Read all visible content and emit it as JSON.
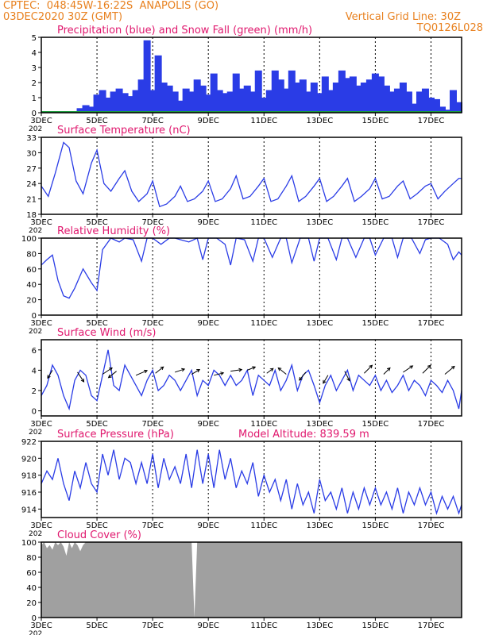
{
  "header": {
    "line1_left": "CPTEC:  048:45W-16:22S  ANAPOLIS (GO)",
    "line2_left": "03DEC2020 30Z (GMT)",
    "line2_right": "Vertical Grid Line: 30Z",
    "line3_right": "TQ0126L028"
  },
  "colors": {
    "header_text": "#e8801e",
    "panel_title": "#e0186e",
    "series_line": "#2a3ce6",
    "precip_bar": "#2a3ce6",
    "snow": "#1a9a3a",
    "cloud_fill": "#a0a0a0",
    "wind_arrow": "#000000"
  },
  "x_axis": {
    "ticks": [
      "3DEC",
      "5DEC",
      "7DEC",
      "9DEC",
      "11DEC",
      "13DEC",
      "15DEC",
      "17DEC"
    ],
    "tick_days": [
      3,
      5,
      7,
      9,
      11,
      13,
      15,
      17
    ],
    "range_days": [
      3,
      18.1
    ],
    "year_stub": "202"
  },
  "panels": [
    {
      "id": "precip",
      "title": "Precipitation (blue) and Snow Fall (green) (mm/h)",
      "extra": "",
      "ylim": [
        0,
        5
      ],
      "yticks": [
        "0",
        "1",
        "2",
        "3",
        "4",
        "5"
      ],
      "ytick_values": [
        0,
        1,
        2,
        3,
        4,
        5
      ]
    },
    {
      "id": "temp",
      "title": "Surface Temperature (nC)",
      "extra": "",
      "ylim": [
        18,
        33
      ],
      "yticks": [
        "18",
        "21",
        "24",
        "27",
        "30",
        "33"
      ],
      "ytick_values": [
        18,
        21,
        24,
        27,
        30,
        33
      ]
    },
    {
      "id": "rh",
      "title": "Relative Humidity (%)",
      "extra": "",
      "ylim": [
        0,
        100
      ],
      "yticks": [
        "0",
        "20",
        "40",
        "60",
        "80",
        "100"
      ],
      "ytick_values": [
        0,
        20,
        40,
        60,
        80,
        100
      ]
    },
    {
      "id": "wind",
      "title": "Surface Wind (m/s)",
      "extra": "",
      "ylim": [
        -0.5,
        7
      ],
      "yticks": [
        "0",
        "2",
        "4",
        "6"
      ],
      "ytick_values": [
        0,
        2,
        4,
        6
      ]
    },
    {
      "id": "pres",
      "title": "Surface Pressure (hPa)",
      "extra": "Model Altitude: 839.59 m",
      "ylim": [
        913,
        922
      ],
      "yticks": [
        "914",
        "916",
        "918",
        "920",
        "922"
      ],
      "ytick_values": [
        914,
        916,
        918,
        920,
        922
      ]
    },
    {
      "id": "cloud",
      "title": "Cloud Cover (%)",
      "extra": "",
      "ylim": [
        0,
        100
      ],
      "yticks": [
        "0",
        "20",
        "40",
        "60",
        "80",
        "100"
      ],
      "ytick_values": [
        0,
        20,
        40,
        60,
        80,
        100
      ]
    }
  ],
  "chart_data": [
    {
      "type": "bar",
      "title": "Precipitation (blue) and Snow Fall (green) (mm/h)",
      "x_unit": "day of December 2020",
      "ylim": [
        0,
        5
      ],
      "series": [
        {
          "name": "Precipitation",
          "x": [
            4.2,
            4.4,
            4.6,
            4.8,
            5.0,
            5.2,
            5.4,
            5.6,
            5.8,
            6.0,
            6.2,
            6.4,
            6.6,
            6.8,
            7.0,
            7.2,
            7.4,
            7.6,
            7.8,
            8.0,
            8.2,
            8.4,
            8.6,
            8.8,
            9.0,
            9.2,
            9.4,
            9.6,
            9.8,
            10.0,
            10.2,
            10.4,
            10.6,
            10.8,
            11.0,
            11.2,
            11.4,
            11.6,
            11.8,
            12.0,
            12.2,
            12.4,
            12.6,
            12.8,
            13.0,
            13.2,
            13.4,
            13.6,
            13.8,
            14.0,
            14.2,
            14.4,
            14.6,
            14.8,
            15.0,
            15.2,
            15.4,
            15.6,
            15.8,
            16.0,
            16.2,
            16.4,
            16.6,
            16.8,
            17.0,
            17.2,
            17.4,
            17.6,
            17.8,
            18.0
          ],
          "values": [
            0.1,
            0.3,
            0.5,
            0.4,
            1.2,
            1.5,
            1.0,
            1.4,
            1.6,
            1.3,
            1.1,
            1.5,
            2.2,
            4.8,
            1.5,
            3.8,
            2.0,
            1.8,
            1.4,
            0.8,
            1.6,
            1.4,
            2.2,
            1.8,
            1.2,
            2.6,
            1.5,
            1.3,
            1.4,
            2.6,
            1.6,
            1.8,
            1.4,
            2.8,
            1.0,
            1.5,
            2.8,
            2.2,
            1.6,
            2.8,
            2.0,
            2.2,
            1.4,
            2.0,
            1.3,
            2.4,
            1.5,
            2.0,
            2.8,
            2.3,
            2.4,
            1.8,
            2.0,
            2.2,
            2.6,
            2.4,
            1.8,
            1.4,
            1.6,
            2.0,
            1.4,
            0.6,
            1.4,
            1.6,
            1.0,
            0.9,
            0.4,
            0.2,
            1.5,
            0.7
          ]
        }
      ]
    },
    {
      "type": "line",
      "title": "Surface Temperature (nC)",
      "ylim": [
        18,
        33
      ],
      "series": [
        {
          "name": "Temperature",
          "x": [
            3.0,
            3.25,
            3.5,
            3.8,
            4.0,
            4.25,
            4.5,
            4.8,
            5.0,
            5.25,
            5.5,
            5.8,
            6.0,
            6.25,
            6.5,
            6.8,
            7.0,
            7.25,
            7.5,
            7.8,
            8.0,
            8.25,
            8.5,
            8.8,
            9.0,
            9.25,
            9.5,
            9.8,
            10.0,
            10.25,
            10.5,
            10.8,
            11.0,
            11.25,
            11.5,
            11.8,
            12.0,
            12.25,
            12.5,
            12.8,
            13.0,
            13.25,
            13.5,
            13.8,
            14.0,
            14.25,
            14.5,
            14.8,
            15.0,
            15.25,
            15.5,
            15.8,
            16.0,
            16.25,
            16.5,
            16.8,
            17.0,
            17.25,
            17.5,
            17.8,
            18.0,
            18.1
          ],
          "values": [
            23.5,
            21.5,
            26.0,
            32.0,
            31.0,
            24.5,
            22.0,
            28.0,
            30.5,
            24.0,
            22.5,
            25.0,
            26.5,
            22.5,
            20.5,
            22.0,
            24.5,
            19.5,
            20.0,
            21.5,
            23.5,
            20.5,
            21.0,
            22.5,
            24.5,
            20.5,
            21.0,
            23.0,
            25.5,
            21.0,
            21.5,
            23.5,
            25.0,
            20.5,
            21.0,
            23.5,
            25.5,
            20.5,
            21.5,
            23.5,
            25.0,
            20.5,
            21.5,
            23.5,
            25.0,
            20.5,
            21.5,
            23.0,
            25.0,
            21.0,
            21.5,
            23.5,
            24.5,
            21.0,
            22.0,
            23.5,
            24.0,
            21.0,
            22.5,
            24.0,
            25.0,
            25.0
          ]
        }
      ]
    },
    {
      "type": "line",
      "title": "Relative Humidity (%)",
      "ylim": [
        0,
        100
      ],
      "series": [
        {
          "name": "Relative Humidity",
          "x": [
            3.0,
            3.2,
            3.4,
            3.6,
            3.8,
            4.0,
            4.2,
            4.5,
            4.8,
            5.0,
            5.2,
            5.5,
            5.8,
            6.0,
            6.3,
            6.6,
            6.8,
            7.0,
            7.3,
            7.6,
            7.8,
            8.0,
            8.3,
            8.6,
            8.8,
            9.0,
            9.3,
            9.6,
            9.8,
            10.0,
            10.3,
            10.6,
            10.8,
            11.0,
            11.3,
            11.6,
            11.8,
            12.0,
            12.3,
            12.6,
            12.8,
            13.0,
            13.3,
            13.6,
            13.8,
            14.0,
            14.3,
            14.6,
            14.8,
            15.0,
            15.3,
            15.6,
            15.8,
            16.0,
            16.3,
            16.6,
            16.8,
            17.0,
            17.3,
            17.6,
            17.8,
            18.0,
            18.1
          ],
          "values": [
            65,
            72,
            78,
            45,
            25,
            22,
            35,
            60,
            42,
            32,
            85,
            100,
            95,
            100,
            98,
            70,
            100,
            100,
            92,
            100,
            100,
            98,
            95,
            100,
            72,
            100,
            100,
            92,
            65,
            100,
            98,
            70,
            100,
            100,
            75,
            100,
            100,
            68,
            100,
            100,
            70,
            100,
            100,
            72,
            100,
            100,
            75,
            100,
            100,
            78,
            100,
            100,
            75,
            100,
            100,
            80,
            98,
            100,
            100,
            92,
            72,
            82,
            78
          ]
        }
      ]
    },
    {
      "type": "line",
      "title": "Surface Wind (m/s)",
      "ylim": [
        -0.5,
        7
      ],
      "series": [
        {
          "name": "Wind speed",
          "x": [
            3.0,
            3.2,
            3.4,
            3.6,
            3.8,
            4.0,
            4.2,
            4.4,
            4.6,
            4.8,
            5.0,
            5.2,
            5.4,
            5.6,
            5.8,
            6.0,
            6.2,
            6.4,
            6.6,
            6.8,
            7.0,
            7.2,
            7.4,
            7.6,
            7.8,
            8.0,
            8.2,
            8.4,
            8.6,
            8.8,
            9.0,
            9.2,
            9.4,
            9.6,
            9.8,
            10.0,
            10.2,
            10.4,
            10.6,
            10.8,
            11.0,
            11.2,
            11.4,
            11.6,
            11.8,
            12.0,
            12.2,
            12.4,
            12.6,
            12.8,
            13.0,
            13.2,
            13.4,
            13.6,
            13.8,
            14.0,
            14.2,
            14.4,
            14.6,
            14.8,
            15.0,
            15.2,
            15.4,
            15.6,
            15.8,
            16.0,
            16.2,
            16.4,
            16.6,
            16.8,
            17.0,
            17.2,
            17.4,
            17.6,
            17.8,
            18.0,
            18.1
          ],
          "values": [
            1.5,
            2.5,
            4.5,
            3.5,
            1.5,
            0.2,
            3.0,
            4.0,
            3.5,
            1.5,
            1.0,
            3.5,
            6.0,
            2.5,
            2.0,
            4.5,
            3.5,
            2.5,
            1.5,
            3.0,
            4.0,
            2.0,
            2.5,
            3.5,
            3.0,
            2.0,
            3.0,
            4.0,
            1.5,
            3.0,
            2.5,
            4.0,
            3.5,
            2.5,
            3.5,
            2.5,
            3.0,
            4.0,
            1.5,
            3.5,
            3.0,
            2.5,
            4.0,
            2.0,
            3.0,
            4.5,
            2.0,
            3.5,
            4.0,
            2.5,
            0.8,
            2.5,
            3.5,
            2.0,
            3.0,
            4.0,
            2.0,
            3.5,
            3.0,
            2.5,
            3.5,
            2.0,
            3.0,
            1.8,
            2.5,
            3.5,
            2.0,
            3.0,
            2.5,
            1.5,
            3.0,
            2.5,
            1.8,
            3.0,
            2.0,
            0.2,
            2.0
          ]
        },
        {
          "name": "Wind arrows",
          "x": [
            3.4,
            4.3,
            5.2,
            5.7,
            6.4,
            7.1,
            7.8,
            8.4,
            9.2,
            9.8,
            10.4,
            11.1,
            11.8,
            12.5,
            13.3,
            13.9,
            14.6,
            15.3,
            16.0,
            16.7,
            17.5
          ],
          "values": [
            4.0,
            3.8,
            3.6,
            3.9,
            3.5,
            3.7,
            3.8,
            3.6,
            3.5,
            3.9,
            4.0,
            3.7,
            3.6,
            3.8,
            3.5,
            3.9,
            3.7,
            3.6,
            3.8,
            3.7,
            3.6
          ]
        }
      ]
    },
    {
      "type": "line",
      "title": "Surface Pressure (hPa)",
      "annotation": "Model Altitude: 839.59 m",
      "ylim": [
        913,
        922
      ],
      "series": [
        {
          "name": "Pressure",
          "x": [
            3.0,
            3.2,
            3.4,
            3.6,
            3.8,
            4.0,
            4.2,
            4.4,
            4.6,
            4.8,
            5.0,
            5.2,
            5.4,
            5.6,
            5.8,
            6.0,
            6.2,
            6.4,
            6.6,
            6.8,
            7.0,
            7.2,
            7.4,
            7.6,
            7.8,
            8.0,
            8.2,
            8.4,
            8.6,
            8.8,
            9.0,
            9.2,
            9.4,
            9.6,
            9.8,
            10.0,
            10.2,
            10.4,
            10.6,
            10.8,
            11.0,
            11.2,
            11.4,
            11.6,
            11.8,
            12.0,
            12.2,
            12.4,
            12.6,
            12.8,
            13.0,
            13.2,
            13.4,
            13.6,
            13.8,
            14.0,
            14.2,
            14.4,
            14.6,
            14.8,
            15.0,
            15.2,
            15.4,
            15.6,
            15.8,
            16.0,
            16.2,
            16.4,
            16.6,
            16.8,
            17.0,
            17.2,
            17.4,
            17.6,
            17.8,
            18.0,
            18.1
          ],
          "values": [
            917.0,
            918.5,
            917.5,
            920.0,
            917.0,
            915.0,
            918.5,
            916.5,
            919.5,
            917.0,
            916.0,
            920.5,
            918.0,
            921.0,
            917.5,
            920.0,
            919.5,
            917.0,
            919.5,
            917.0,
            920.5,
            916.5,
            920.0,
            917.5,
            919.0,
            917.0,
            920.5,
            916.5,
            921.0,
            917.0,
            920.5,
            916.5,
            921.0,
            917.5,
            920.0,
            916.5,
            918.5,
            917.0,
            919.5,
            915.5,
            918.0,
            916.0,
            917.5,
            915.0,
            917.5,
            914.0,
            917.0,
            914.5,
            916.0,
            913.5,
            917.5,
            915.0,
            916.0,
            914.0,
            916.5,
            913.5,
            916.0,
            914.0,
            916.5,
            914.5,
            916.5,
            914.5,
            916.0,
            914.0,
            916.5,
            913.5,
            916.0,
            914.5,
            916.5,
            914.5,
            916.0,
            913.5,
            915.5,
            914.0,
            915.5,
            913.5,
            914.5
          ]
        }
      ]
    },
    {
      "type": "area",
      "title": "Cloud Cover (%)",
      "ylim": [
        0,
        100
      ],
      "series": [
        {
          "name": "Cloud Cover",
          "x": [
            3.0,
            3.1,
            3.2,
            3.3,
            3.4,
            3.5,
            3.6,
            3.7,
            3.8,
            3.9,
            4.0,
            4.1,
            4.2,
            4.3,
            4.4,
            4.5,
            4.6,
            5.0,
            6.0,
            7.0,
            8.0,
            8.4,
            8.5,
            8.6,
            9.0,
            10.0,
            11.0,
            12.0,
            13.0,
            14.0,
            15.0,
            16.0,
            17.0,
            18.0,
            18.1
          ],
          "values": [
            96,
            100,
            92,
            96,
            90,
            100,
            96,
            100,
            94,
            82,
            100,
            92,
            100,
            96,
            88,
            96,
            100,
            100,
            100,
            100,
            100,
            100,
            0,
            100,
            100,
            100,
            100,
            100,
            100,
            100,
            100,
            100,
            100,
            100,
            100
          ]
        }
      ]
    }
  ]
}
